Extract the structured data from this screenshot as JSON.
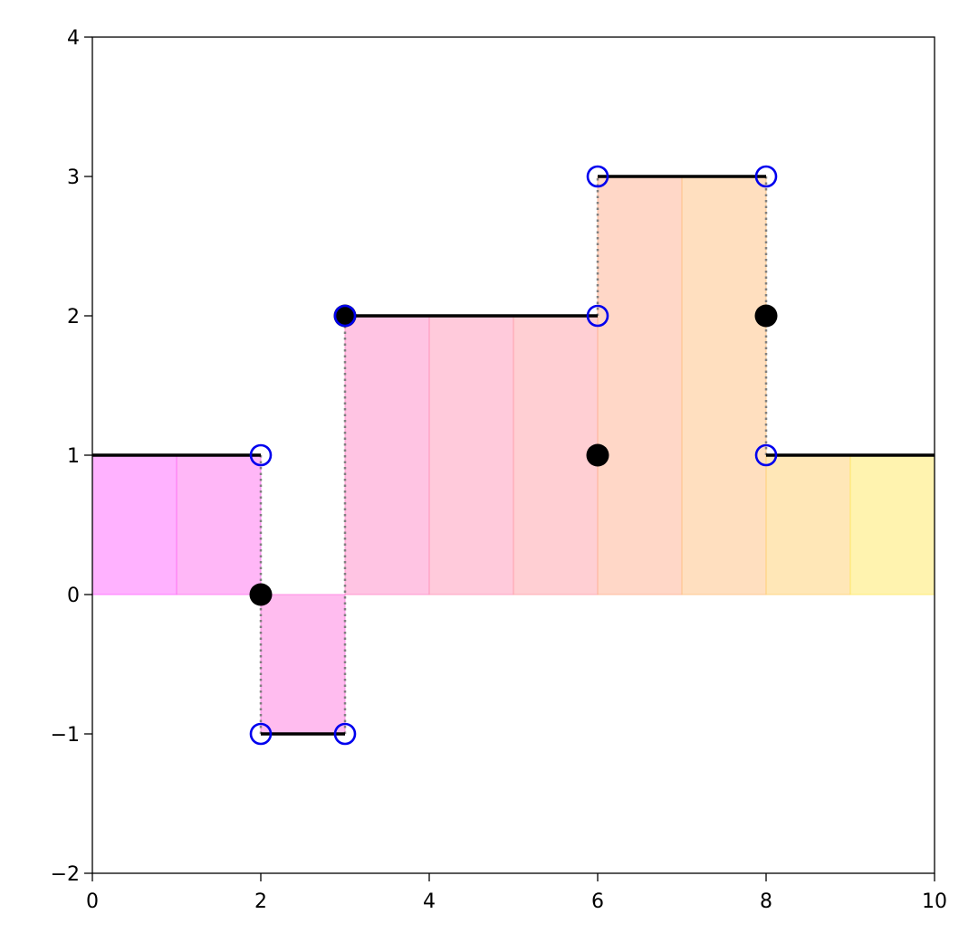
{
  "chart_data": {
    "type": "step",
    "title": "",
    "xlabel": "",
    "ylabel": "",
    "xlim": [
      0,
      10
    ],
    "ylim": [
      -2,
      4
    ],
    "grid": false,
    "legend": null,
    "x_ticks": [
      0,
      2,
      4,
      6,
      8,
      10
    ],
    "y_ticks": [
      -2,
      -1,
      0,
      1,
      2,
      3,
      4
    ],
    "x_tick_labels": [
      "0",
      "2",
      "4",
      "6",
      "8",
      "10"
    ],
    "y_tick_labels": [
      "−2",
      "−1",
      "0",
      "1",
      "2",
      "3",
      "4"
    ],
    "segments": [
      {
        "x0": 0,
        "x1": 2,
        "y": 1
      },
      {
        "x0": 2,
        "x1": 3,
        "y": -1
      },
      {
        "x0": 3,
        "x1": 6,
        "y": 2
      },
      {
        "x0": 6,
        "x1": 8,
        "y": 3
      },
      {
        "x0": 8,
        "x1": 10,
        "y": 1
      }
    ],
    "jumps": [
      {
        "x": 2,
        "from": 1,
        "to": -1
      },
      {
        "x": 3,
        "from": -1,
        "to": 2
      },
      {
        "x": 6,
        "from": 2,
        "to": 3
      },
      {
        "x": 8,
        "from": 3,
        "to": 1
      }
    ],
    "open_points": [
      {
        "x": 2,
        "y": 1
      },
      {
        "x": 2,
        "y": -1
      },
      {
        "x": 3,
        "y": -1
      },
      {
        "x": 3,
        "y": 2
      },
      {
        "x": 6,
        "y": 2
      },
      {
        "x": 6,
        "y": 3
      },
      {
        "x": 8,
        "y": 3
      },
      {
        "x": 8,
        "y": 1
      }
    ],
    "filled_points": [
      {
        "x": 2,
        "y": 0
      },
      {
        "x": 3,
        "y": 2
      },
      {
        "x": 6,
        "y": 1
      },
      {
        "x": 8,
        "y": 2
      }
    ],
    "bars": [
      {
        "x0": 0,
        "x1": 1,
        "y": 1,
        "color": "#ff66ff"
      },
      {
        "x0": 1,
        "x1": 2,
        "y": 1,
        "color": "#ff70f0"
      },
      {
        "x0": 2,
        "x1": 3,
        "y": -1,
        "color": "#ff7ae0"
      },
      {
        "x0": 3,
        "x1": 4,
        "y": 2,
        "color": "#ff8ac8"
      },
      {
        "x0": 4,
        "x1": 5,
        "y": 2,
        "color": "#ff95b8"
      },
      {
        "x0": 5,
        "x1": 6,
        "y": 2,
        "color": "#ffa0a8"
      },
      {
        "x0": 6,
        "x1": 7,
        "y": 3,
        "color": "#ffb090"
      },
      {
        "x0": 7,
        "x1": 8,
        "y": 3,
        "color": "#ffc080"
      },
      {
        "x0": 8,
        "x1": 9,
        "y": 1,
        "color": "#ffd070"
      },
      {
        "x0": 9,
        "x1": 10,
        "y": 1,
        "color": "#ffe860"
      }
    ],
    "colors": {
      "step_line": "#000000",
      "open_marker": "#0000ee",
      "filled_marker": "#000000",
      "jump_line": "#808080"
    }
  }
}
